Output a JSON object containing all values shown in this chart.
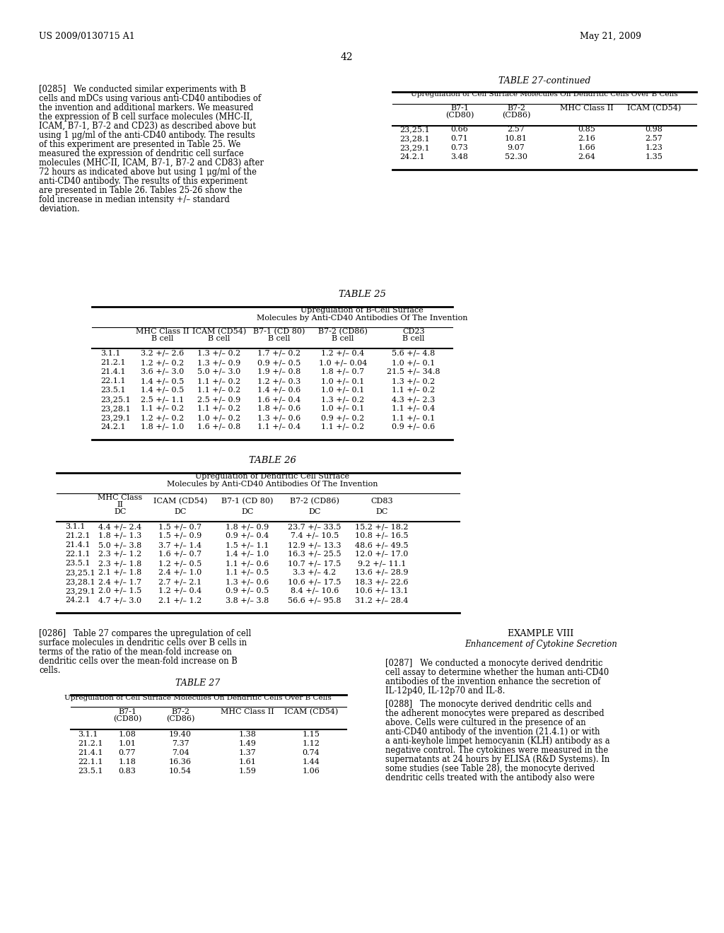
{
  "page_header_left": "US 2009/0130715 A1",
  "page_header_right": "May 21, 2009",
  "page_number": "42",
  "left_text": "[0285]   We conducted similar experiments with B cells and mDCs using various anti-CD40 antibodies of the invention and additional markers. We measured the expression of B cell surface molecules (MHC-II, ICAM, B7-1, B7-2 and CD23) as described above but using 1 μg/ml of the anti-CD40 antibody. The results of this experiment are presented in Table 25. We measured the expression of dendritic cell surface molecules (MHC-II, ICAM, B7-1, B7-2 and CD83) after 72 hours as indicated above but using 1 μg/ml of the anti-CD40 antibody. The results of this experiment are presented in Table 26. Tables 25-26 show the fold increase in median intensity +/– standard deviation.",
  "table27cont_title": "TABLE 27-continued",
  "table27cont_subtitle": "Upregulation of Cell Surface Molecules On Dendritic Cells Over B Cells",
  "table27cont_headers": [
    "",
    "B7-1\n(CD80)",
    "B7-2\n(CD86)",
    "MHC Class II",
    "ICAM (CD54)"
  ],
  "table27cont_data": [
    [
      "23,25.1",
      "0.66",
      "2.57",
      "0.85",
      "0.98"
    ],
    [
      "23,28.1",
      "0.71",
      "10.81",
      "2.16",
      "2.57"
    ],
    [
      "23,29.1",
      "0.73",
      "9.07",
      "1.66",
      "1.23"
    ],
    [
      "24.2.1",
      "3.48",
      "52.30",
      "2.64",
      "1.35"
    ]
  ],
  "table25_title": "TABLE 25",
  "table25_subtitle1": "Upregulation of B-Cell Surface",
  "table25_subtitle2": "Molecules by Anti-CD40 Antibodies Of The Invention",
  "table25_headers": [
    "",
    "MHC Class II\nB cell",
    "ICAM (CD54)\nB cell",
    "B7-1 (CD 80)\nB cell",
    "B7-2 (CD86)\nB cell",
    "CD23\nB cell"
  ],
  "table25_data": [
    [
      "3.1.1",
      "3.2 +/– 2.6",
      "1.3 +/– 0.2",
      "1.7 +/– 0.2",
      "1.2 +/– 0.4",
      "5.6 +/– 4.8"
    ],
    [
      "21.2.1",
      "1.2 +/– 0.2",
      "1.3 +/– 0.9",
      "0.9 +/– 0.5",
      "1.0 +/– 0.04",
      "1.0 +/– 0.1"
    ],
    [
      "21.4.1",
      "3.6 +/– 3.0",
      "5.0 +/– 3.0",
      "1.9 +/– 0.8",
      "1.8 +/– 0.7",
      "21.5 +/– 34.8"
    ],
    [
      "22.1.1",
      "1.4 +/– 0.5",
      "1.1 +/– 0.2",
      "1.2 +/– 0.3",
      "1.0 +/– 0.1",
      "1.3 +/– 0.2"
    ],
    [
      "23.5.1",
      "1.4 +/– 0.5",
      "1.1 +/– 0.2",
      "1.4 +/– 0.6",
      "1.0 +/– 0.1",
      "1.1 +/– 0.2"
    ],
    [
      "23,25.1",
      "2.5 +/– 1.1",
      "2.5 +/– 0.9",
      "1.6 +/– 0.4",
      "1.3 +/– 0.2",
      "4.3 +/– 2.3"
    ],
    [
      "23,28.1",
      "1.1 +/– 0.2",
      "1.1 +/– 0.2",
      "1.8 +/– 0.6",
      "1.0 +/– 0.1",
      "1.1 +/– 0.4"
    ],
    [
      "23,29.1",
      "1.2 +/– 0.2",
      "1.0 +/– 0.2",
      "1.3 +/– 0.6",
      "0.9 +/– 0.2",
      "1.1 +/– 0.1"
    ],
    [
      "24.2.1",
      "1.8 +/– 1.0",
      "1.6 +/– 0.8",
      "1.1 +/– 0.4",
      "1.1 +/– 0.2",
      "0.9 +/– 0.6"
    ]
  ],
  "table26_title": "TABLE 26",
  "table26_subtitle1": "Upregulation of Dendritic Cell Surface",
  "table26_subtitle2": "Molecules by Anti-CD40 Antibodies Of The Invention",
  "table26_headers": [
    "",
    "MHC Class\nII\nDC",
    "ICAM (CD54)\nDC",
    "B7-1 (CD 80)\nDC",
    "B7-2 (CD86)\nDC",
    "CD83\nDC"
  ],
  "table26_data": [
    [
      "3.1.1",
      "4.4 +/– 2.4",
      "1.5 +/– 0.7",
      "1.8 +/– 0.9",
      "23.7 +/– 33.5",
      "15.2 +/– 18.2"
    ],
    [
      "21.2.1",
      "1.8 +/– 1.3",
      "1.5 +/– 0.9",
      "0.9 +/– 0.4",
      "7.4 +/– 10.5",
      "10.8 +/– 16.5"
    ],
    [
      "21.4.1",
      "5.0 +/– 3.8",
      "3.7 +/– 1.4",
      "1.5 +/– 1.1",
      "12.9 +/– 13.3",
      "48.6 +/– 49.5"
    ],
    [
      "22.1.1",
      "2.3 +/– 1.2",
      "1.6 +/– 0.7",
      "1.4 +/– 1.0",
      "16.3 +/– 25.5",
      "12.0 +/– 17.0"
    ],
    [
      "23.5.1",
      "2.3 +/– 1.8",
      "1.2 +/– 0.5",
      "1.1 +/– 0.6",
      "10.7 +/– 17.5",
      "9.2 +/– 11.1"
    ],
    [
      "23,25.1",
      "2.1 +/– 1.8",
      "2.4 +/– 1.0",
      "1.1 +/– 0.5",
      "3.3 +/– 4.2",
      "13.6 +/– 28.9"
    ],
    [
      "23,28.1",
      "2.4 +/– 1.7",
      "2.7 +/– 2.1",
      "1.3 +/– 0.6",
      "10.6 +/– 17.5",
      "18.3 +/– 22.6"
    ],
    [
      "23,29.1",
      "2.0 +/– 1.5",
      "1.2 +/– 0.4",
      "0.9 +/– 0.5",
      "8.4 +/– 10.6",
      "10.6 +/– 13.1"
    ],
    [
      "24.2.1",
      "4.7 +/– 3.0",
      "2.1 +/– 1.2",
      "3.8 +/– 3.8",
      "56.6 +/– 95.8",
      "31.2 +/– 28.4"
    ]
  ],
  "bottom_left_text1": "[0286]   Table 27 compares the upregulation of cell surface molecules in dendritic cells over B cells in terms of the ratio of the mean-fold increase on dendritic cells over the mean-fold increase on B cells.",
  "table27_title": "TABLE 27",
  "table27_subtitle": "Upregulation of Cell Surface Molecules On Dendritic Cells Over B Cells",
  "table27_headers": [
    "",
    "B7-1\n(CD80)",
    "B7-2\n(CD86)",
    "MHC Class II",
    "ICAM (CD54)"
  ],
  "table27_data": [
    [
      "3.1.1",
      "1.08",
      "19.40",
      "1.38",
      "1.15"
    ],
    [
      "21.2.1",
      "1.01",
      "7.37",
      "1.49",
      "1.12"
    ],
    [
      "21.4.1",
      "0.77",
      "7.04",
      "1.37",
      "0.74"
    ],
    [
      "22.1.1",
      "1.18",
      "16.36",
      "1.61",
      "1.44"
    ],
    [
      "23.5.1",
      "0.83",
      "10.54",
      "1.59",
      "1.06"
    ]
  ],
  "bottom_right_header": "EXAMPLE VIII",
  "bottom_right_subheader": "Enhancement of Cytokine Secretion",
  "bottom_right_text": "[0287]   We conducted a monocyte derived dendritic cell assay to determine whether the human anti-CD40 antibodies of the invention enhance the secretion of IL-12p40, IL-12p70 and IL-8.",
  "bottom_right_text2": "[0288]   The monocyte derived dendritic cells and the adherent monocytes were prepared as described above. Cells were cultured in the presence of an anti-CD40 antibody of the invention (21.4.1) or with a anti-keyhole limpet hemocyanin (KLH) antibody as a negative control. The cytokines were measured in the supernatants at 24 hours by ELISA (R&D Systems). In some studies (see Table 28), the monocyte derived dendritic cells treated with the antibody also were"
}
